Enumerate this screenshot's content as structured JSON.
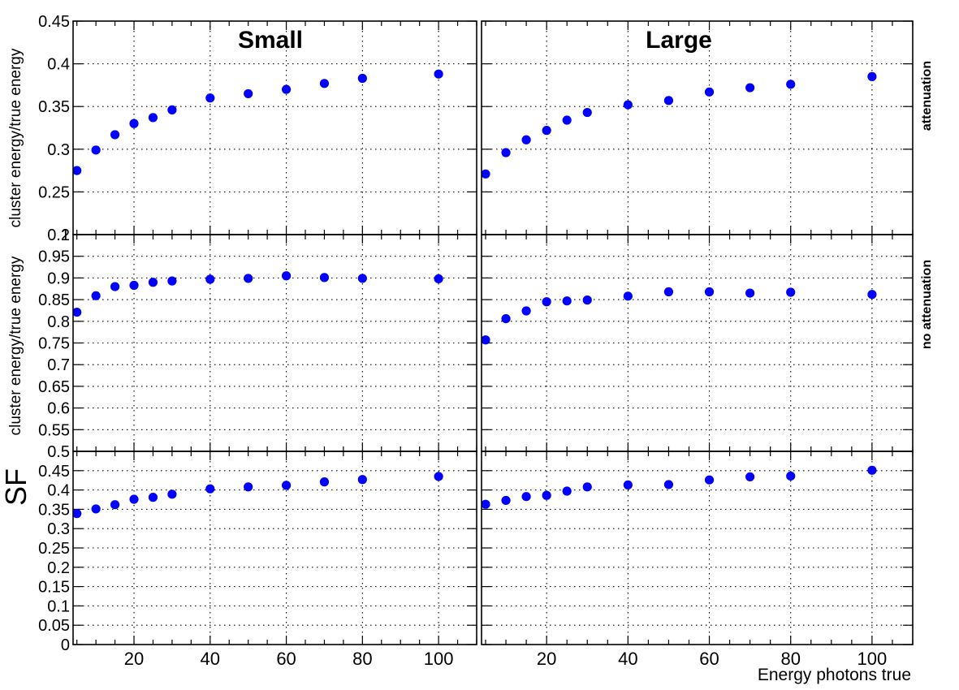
{
  "chart_data": {
    "type": "scatter",
    "layout": "grid 3 rows x 2 columns",
    "column_titles": [
      "Small",
      "Large"
    ],
    "row_labels": [
      "attenuation",
      "no attenuation",
      ""
    ],
    "xlabel": "Energy photons true",
    "ylabel_prefix": "SF",
    "ylabel": "cluster energy/true energy",
    "xlim": [
      4,
      110
    ],
    "xticks": [
      20,
      40,
      60,
      80,
      100
    ],
    "marker_color": "#0000ff",
    "grid": true,
    "rows": [
      {
        "ylim": [
          0.2,
          0.45
        ],
        "yticks": [
          "0.2",
          "0.25",
          "0.3",
          "0.35",
          "0.4",
          "0.45"
        ],
        "panels": [
          {
            "x": [
              5,
              10,
              15,
              20,
              25,
              30,
              40,
              50,
              60,
              70,
              80,
              100
            ],
            "y": [
              0.275,
              0.299,
              0.317,
              0.33,
              0.337,
              0.346,
              0.36,
              0.365,
              0.37,
              0.377,
              0.383,
              0.388
            ]
          },
          {
            "x": [
              5,
              10,
              15,
              20,
              25,
              30,
              40,
              50,
              60,
              70,
              80,
              100
            ],
            "y": [
              0.271,
              0.296,
              0.311,
              0.322,
              0.334,
              0.343,
              0.352,
              0.357,
              0.367,
              0.372,
              0.376,
              0.385
            ]
          }
        ]
      },
      {
        "ylim": [
          0.5,
          1.0
        ],
        "yticks": [
          "0.5",
          "0.55",
          "0.6",
          "0.65",
          "0.7",
          "0.75",
          "0.8",
          "0.85",
          "0.9",
          "0.95",
          "1"
        ],
        "panels": [
          {
            "x": [
              5,
              10,
              15,
              20,
              25,
              30,
              40,
              50,
              60,
              70,
              80,
              100
            ],
            "y": [
              0.821,
              0.859,
              0.88,
              0.883,
              0.89,
              0.893,
              0.897,
              0.899,
              0.905,
              0.901,
              0.899,
              0.898
            ]
          },
          {
            "x": [
              5,
              10,
              15,
              20,
              25,
              30,
              40,
              50,
              60,
              70,
              80,
              100
            ],
            "y": [
              0.757,
              0.806,
              0.824,
              0.845,
              0.847,
              0.849,
              0.858,
              0.868,
              0.868,
              0.865,
              0.867,
              0.862
            ]
          }
        ]
      },
      {
        "ylim": [
          0,
          0.5
        ],
        "yticks": [
          "0",
          "0.05",
          "0.1",
          "0.15",
          "0.2",
          "0.25",
          "0.3",
          "0.35",
          "0.4",
          "0.45"
        ],
        "panels": [
          {
            "x": [
              5,
              10,
              15,
              20,
              25,
              30,
              40,
              50,
              60,
              70,
              80,
              100
            ],
            "y": [
              0.339,
              0.351,
              0.362,
              0.376,
              0.381,
              0.389,
              0.403,
              0.408,
              0.412,
              0.421,
              0.427,
              0.435
            ]
          },
          {
            "x": [
              5,
              10,
              15,
              20,
              25,
              30,
              40,
              50,
              60,
              70,
              80,
              100
            ],
            "y": [
              0.363,
              0.373,
              0.383,
              0.386,
              0.397,
              0.408,
              0.413,
              0.414,
              0.426,
              0.434,
              0.436,
              0.451
            ]
          }
        ]
      }
    ]
  }
}
